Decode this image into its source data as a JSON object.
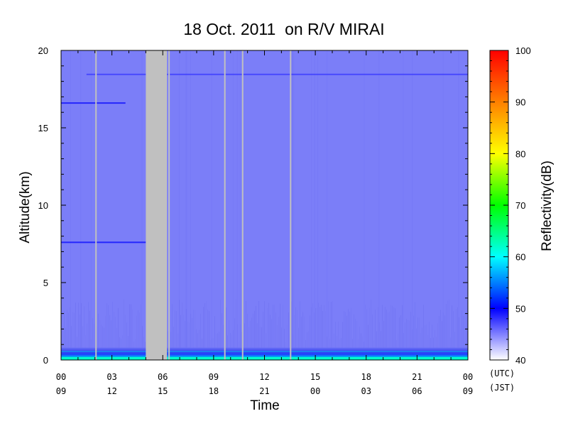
{
  "chart_data": {
    "type": "heatmap",
    "title": "18 Oct. 2011  on R/V MIRAI",
    "xlabel": "Time",
    "ylabel": "Altitude(km)",
    "x_ticks_utc": [
      "00",
      "03",
      "06",
      "09",
      "12",
      "15",
      "18",
      "21",
      "00"
    ],
    "x_ticks_jst": [
      "09",
      "12",
      "15",
      "18",
      "21",
      "00",
      "03",
      "06",
      "09"
    ],
    "x_tick_hours_utc": [
      0,
      3,
      6,
      9,
      12,
      15,
      18,
      21,
      24
    ],
    "xlim_hours_utc": [
      0,
      24
    ],
    "timezone_labels": [
      "(UTC)",
      "(JST)"
    ],
    "y_ticks": [
      "0",
      "5",
      "10",
      "15",
      "20"
    ],
    "y_tick_values": [
      0,
      5,
      10,
      15,
      20
    ],
    "ylim_km": [
      0,
      20
    ],
    "colorbar": {
      "label": "Reflectivity(dB)",
      "range": [
        40,
        100
      ],
      "ticks": [
        "40",
        "50",
        "60",
        "70",
        "80",
        "90",
        "100"
      ],
      "tick_values": [
        40,
        50,
        60,
        70,
        80,
        90,
        100
      ],
      "stops": [
        {
          "value": 40,
          "color": "#ffffff"
        },
        {
          "value": 45,
          "color": "#8080ff"
        },
        {
          "value": 50,
          "color": "#0000ff"
        },
        {
          "value": 60,
          "color": "#00ffff"
        },
        {
          "value": 70,
          "color": "#00ff00"
        },
        {
          "value": 80,
          "color": "#ffff00"
        },
        {
          "value": 90,
          "color": "#ff8000"
        },
        {
          "value": 100,
          "color": "#ff0000"
        }
      ]
    },
    "background_reflectivity_db": 45,
    "background_color": "#7b7ef8",
    "no_data_color": "#c0c0c0",
    "no_data_periods_hours_utc": [
      [
        2.02,
        2.1
      ],
      [
        5.0,
        6.25
      ],
      [
        6.33,
        6.41
      ],
      [
        9.62,
        9.7
      ],
      [
        10.67,
        10.75
      ],
      [
        13.5,
        13.58
      ]
    ],
    "horizontal_features": [
      {
        "altitude_km": 18.45,
        "start_hour": 1.5,
        "end_hour": 24,
        "reflectivity_db": 48
      },
      {
        "altitude_km": 16.6,
        "start_hour": 0,
        "end_hour": 3.8,
        "reflectivity_db": 50
      },
      {
        "altitude_km": 7.6,
        "start_hour": 0,
        "end_hour": 5.0,
        "reflectivity_db": 50
      }
    ],
    "boundary_layer": {
      "top_km": 0.8,
      "reflectivity_db_range": [
        50,
        62
      ]
    }
  }
}
